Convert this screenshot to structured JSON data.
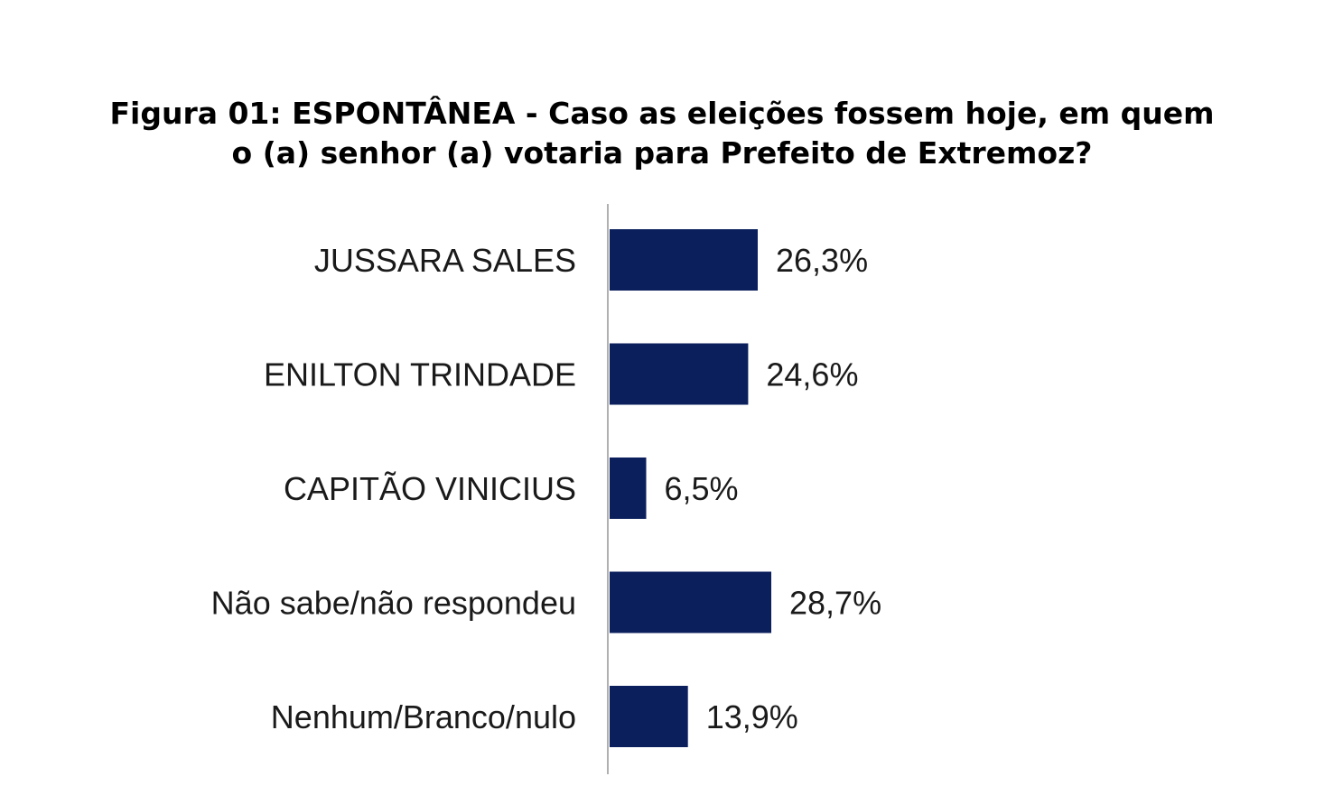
{
  "chart_data": {
    "type": "bar",
    "orientation": "horizontal",
    "title_lines": [
      "Figura 01: ESPONTÂNEA - Caso as eleições fossem hoje, em quem",
      "o (a) senhor (a) votaria para Prefeito de Extremoz?"
    ],
    "categories": [
      "JUSSARA SALES",
      "ENILTON TRINDADE",
      "CAPITÃO VINICIUS",
      "Não sabe/não respondeu",
      "Nenhum/Branco/nulo"
    ],
    "values": [
      26.3,
      24.6,
      6.5,
      28.7,
      13.9
    ],
    "value_labels": [
      "26,3%",
      "24,6%",
      "6,5%",
      "28,7%",
      "13,9%"
    ],
    "bar_color": "#0b1f5c",
    "axis_color": "#b0b0b0",
    "grid": false,
    "legend": "none"
  }
}
